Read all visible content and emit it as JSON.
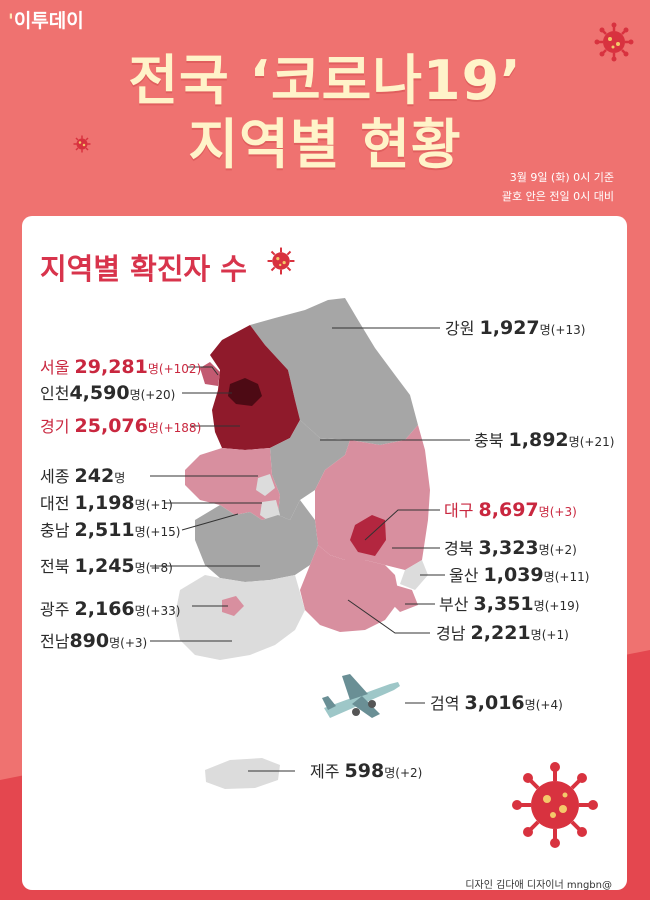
{
  "brand": "이투데이",
  "title_line1": "전국 ‘코로나19’",
  "title_line2": "지역별 현황",
  "meta_line1": "3월 9일 (화) 0시 기준",
  "meta_line2": "괄호 안은 전일 0시 대비",
  "section_title": "지역별 확진자 수",
  "unit": "명",
  "regions": [
    {
      "key": "gangwon",
      "name": "강원",
      "count": "1,927",
      "inc": "(+13)",
      "highlight": false
    },
    {
      "key": "seoul",
      "name": "서울",
      "count": "29,281",
      "inc": "(+102)",
      "highlight": true
    },
    {
      "key": "incheon",
      "name": "인천",
      "count": "4,590",
      "inc": "(+20)",
      "highlight": false
    },
    {
      "key": "gyeonggi",
      "name": "경기",
      "count": "25,076",
      "inc": "(+188)",
      "highlight": true
    },
    {
      "key": "chungbuk",
      "name": "충북",
      "count": "1,892",
      "inc": "(+21)",
      "highlight": false
    },
    {
      "key": "sejong",
      "name": "세종",
      "count": "242",
      "inc": "",
      "highlight": false
    },
    {
      "key": "daejeon",
      "name": "대전",
      "count": "1,198",
      "inc": "(+1)",
      "highlight": false
    },
    {
      "key": "chungnam",
      "name": "충남",
      "count": "2,511",
      "inc": "(+15)",
      "highlight": false
    },
    {
      "key": "daegu",
      "name": "대구",
      "count": "8,697",
      "inc": "(+3)",
      "highlight": true
    },
    {
      "key": "gyeongbuk",
      "name": "경북",
      "count": "3,323",
      "inc": "(+2)",
      "highlight": false
    },
    {
      "key": "jeonbuk",
      "name": "전북",
      "count": "1,245",
      "inc": "(+8)",
      "highlight": false
    },
    {
      "key": "ulsan",
      "name": "울산",
      "count": "1,039",
      "inc": "(+11)",
      "highlight": false
    },
    {
      "key": "busan",
      "name": "부산",
      "count": "3,351",
      "inc": "(+19)",
      "highlight": false
    },
    {
      "key": "gwangju",
      "name": "광주",
      "count": "2,166",
      "inc": "(+33)",
      "highlight": false
    },
    {
      "key": "jeonnam",
      "name": "전남",
      "count": "890",
      "inc": "(+3)",
      "highlight": false
    },
    {
      "key": "gyeongnam",
      "name": "경남",
      "count": "2,221",
      "inc": "(+1)",
      "highlight": false
    },
    {
      "key": "quarantine",
      "name": "검역",
      "count": "3,016",
      "inc": "(+4)",
      "highlight": false
    },
    {
      "key": "jeju",
      "name": "제주",
      "count": "598",
      "inc": "(+2)",
      "highlight": false
    }
  ],
  "credit": "디자인 김다애 디자이너 mngbn@",
  "icons": [
    "virus-icon",
    "airplane-icon"
  ],
  "colors": {
    "background": "#ef7270",
    "title": "#fff3c9",
    "highlight_text": "#c9273f",
    "map_dark": "#8f1a2b",
    "map_pink": "#d88f9f",
    "map_gray": "#a6a6a6",
    "map_light": "#dcdcdc"
  }
}
